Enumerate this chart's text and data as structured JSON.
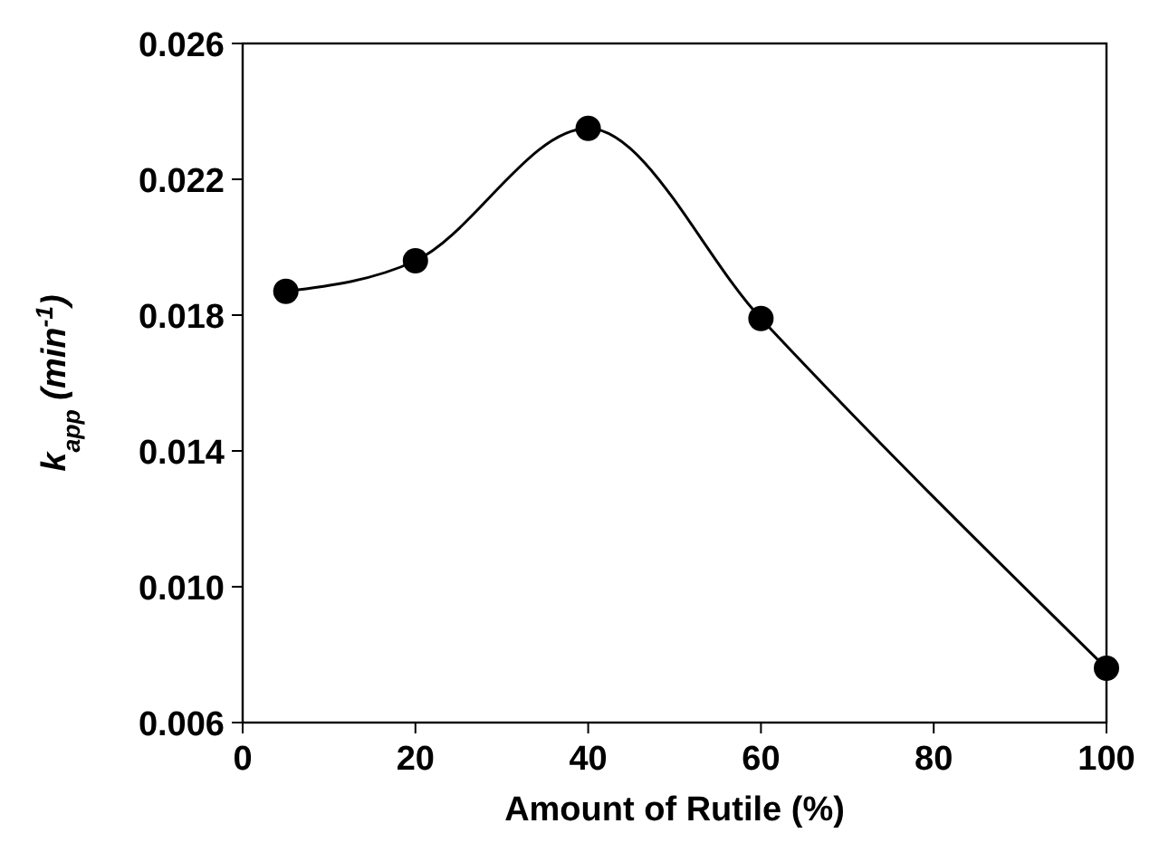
{
  "chart_data": {
    "type": "line",
    "xlabel": "Amount of Rutile (%)",
    "ylabel": "k$_{app}$ (min$^{-1}$)",
    "x": [
      5,
      20,
      40,
      60,
      100
    ],
    "series": [
      {
        "color": "#000000",
        "values": [
          0.0187,
          0.0196,
          0.0235,
          0.0179,
          0.0076
        ]
      }
    ],
    "xlim": [
      0,
      100
    ],
    "xticks": [
      0,
      20,
      40,
      60,
      80,
      100
    ],
    "ylim": [
      0.006,
      0.026
    ],
    "yticks": [
      {
        "value": 0.006,
        "label": "0.006"
      },
      {
        "value": 0.01,
        "label": "0.010"
      },
      {
        "value": 0.014,
        "label": "0.014"
      },
      {
        "value": 0.018,
        "label": "0.018"
      },
      {
        "value": 0.022,
        "label": "0.022"
      },
      {
        "value": 0.026,
        "label": "0.026"
      }
    ],
    "marker": "circle",
    "line_style": "solid",
    "grid": false
  }
}
